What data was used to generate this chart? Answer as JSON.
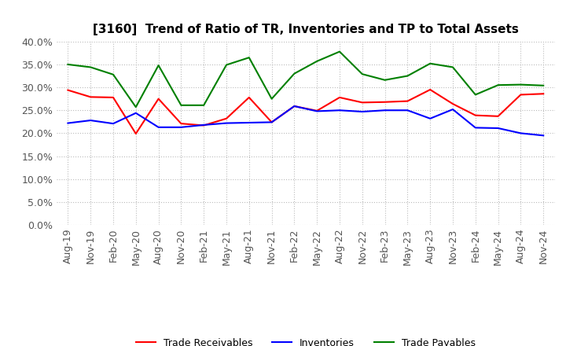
{
  "title": "[3160]  Trend of Ratio of TR, Inventories and TP to Total Assets",
  "x_labels": [
    "Aug-19",
    "Nov-19",
    "Feb-20",
    "May-20",
    "Aug-20",
    "Nov-20",
    "Feb-21",
    "May-21",
    "Aug-21",
    "Nov-21",
    "Feb-22",
    "May-22",
    "Aug-22",
    "Nov-22",
    "Feb-23",
    "May-23",
    "Aug-23",
    "Nov-23",
    "Feb-24",
    "May-24",
    "Aug-24",
    "Nov-24"
  ],
  "trade_receivables": [
    0.294,
    0.279,
    0.278,
    0.199,
    0.275,
    0.221,
    0.217,
    0.232,
    0.278,
    0.224,
    0.259,
    0.249,
    0.278,
    0.267,
    0.268,
    0.27,
    0.295,
    0.264,
    0.239,
    0.237,
    0.284,
    0.286
  ],
  "inventories": [
    0.222,
    0.228,
    0.221,
    0.244,
    0.213,
    0.213,
    0.218,
    0.222,
    0.223,
    0.224,
    0.259,
    0.248,
    0.25,
    0.247,
    0.25,
    0.25,
    0.232,
    0.252,
    0.212,
    0.211,
    0.2,
    0.195
  ],
  "trade_payables": [
    0.35,
    0.344,
    0.328,
    0.257,
    0.348,
    0.261,
    0.261,
    0.349,
    0.365,
    0.275,
    0.33,
    0.357,
    0.378,
    0.329,
    0.316,
    0.325,
    0.352,
    0.344,
    0.284,
    0.305,
    0.306,
    0.304
  ],
  "tr_color": "#ff0000",
  "inv_color": "#0000ff",
  "tp_color": "#008000",
  "ylim": [
    0.0,
    0.4
  ],
  "yticks": [
    0.0,
    0.05,
    0.1,
    0.15,
    0.2,
    0.25,
    0.3,
    0.35,
    0.4
  ],
  "legend_labels": [
    "Trade Receivables",
    "Inventories",
    "Trade Payables"
  ],
  "bg_color": "#ffffff",
  "grid_color": "#bbbbbb",
  "title_fontsize": 11,
  "tick_fontsize": 9,
  "legend_fontsize": 9
}
